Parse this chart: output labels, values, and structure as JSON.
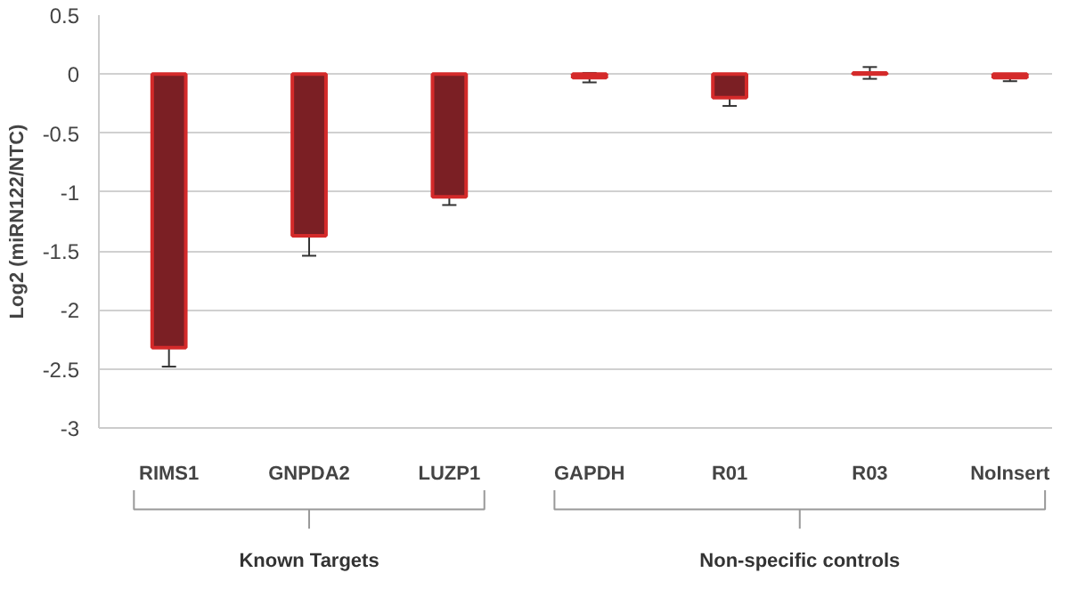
{
  "chart_data": {
    "type": "bar",
    "ylabel": "Log2 (miRN122/NTC)",
    "categories": [
      "RIMS1",
      "GNPDA2",
      "LUZP1",
      "GAPDH",
      "R01",
      "R03",
      "NoInsert"
    ],
    "values": [
      -2.32,
      -1.37,
      -1.04,
      -0.03,
      -0.2,
      0.01,
      -0.03
    ],
    "errors": [
      0.16,
      0.17,
      0.07,
      0.04,
      0.07,
      0.05,
      0.03
    ],
    "color": "#7b1f24",
    "ylim": [
      -3,
      0.5
    ],
    "yticks": [
      0.5,
      0,
      -0.5,
      -1,
      -1.5,
      -2,
      -2.5,
      -3
    ],
    "grid": "y",
    "annotations": [
      "Known Targets",
      "Non-specific controls"
    ]
  }
}
